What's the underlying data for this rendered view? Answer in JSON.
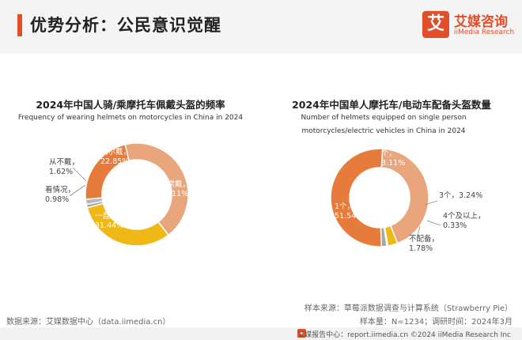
{
  "page": {
    "title": "优势分析：公民意识觉醒",
    "logo_cn": "艾媒咨询",
    "logo_en": "iiMedia Research",
    "logo_glyph": "艾",
    "note_sample_source": "样本来源：草莓派数据调查与计算系统（Strawberry Pie）",
    "note_sample_size": "样本量：N=1234；调研时间：2024年3月",
    "data_source": "数据来源：艾媒数据中心（data.iimedia.cn）",
    "footer": "艾媒报告中心：report.iimedia.cn    ©2024  iiMedia Research  Inc",
    "colors": {
      "accent": "#e24e2a",
      "peach": "#e9a67c",
      "orange": "#e67b3c",
      "gray": "#a7a7a7",
      "yellow": "#f0b814"
    }
  },
  "chart_data": [
    {
      "type": "pie",
      "variant": "donut",
      "title": "2024年中国人骑/乘摩托车佩戴头盔的频率",
      "subtitle": "Frequency of wearing helmets on motorcycles in China in 2024",
      "slices": [
        {
          "label": "经常戴",
          "value": 43.11,
          "display": "43.11%",
          "color": "#e9a67c"
        },
        {
          "label": "一直戴",
          "value": 31.44,
          "display": "31.44%",
          "color": "#f0b814"
        },
        {
          "label": "看情况",
          "value": 0.98,
          "display": "0.98%",
          "color": "#9a9a9a"
        },
        {
          "label": "从不戴",
          "value": 1.62,
          "display": "1.62%",
          "color": "#b8b8b8"
        },
        {
          "label": "偶尔戴",
          "value": 22.85,
          "display": "22.85%",
          "color": "#e67b3c"
        }
      ]
    },
    {
      "type": "pie",
      "variant": "donut",
      "title": "2024年中国单人摩托车/电动车配备头盔数量",
      "subtitle": "Number of helmets equipped on single person motorcycles/electric vehicles in China in 2024",
      "slices": [
        {
          "label": "2个",
          "value": 43.11,
          "display": "43.11%",
          "color": "#e9a67c"
        },
        {
          "label": "3个",
          "value": 3.24,
          "display": "3.24%",
          "color": "#f0b814"
        },
        {
          "label": "4个及以上",
          "value": 0.33,
          "display": "0.33%",
          "color": "#d99a10"
        },
        {
          "label": "不配备",
          "value": 1.78,
          "display": "1.78%",
          "color": "#a7a7a7"
        },
        {
          "label": "1个",
          "value": 51.54,
          "display": "51.54%",
          "color": "#e67b3c"
        }
      ]
    }
  ]
}
